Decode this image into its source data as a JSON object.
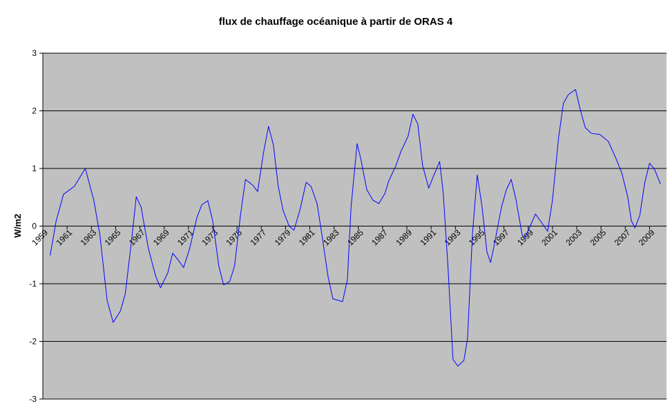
{
  "chart_data": {
    "type": "line",
    "title": "flux de chauffage océanique à partir de ORAS 4",
    "y_label": "W/m2",
    "color": "#0000ff",
    "background": "#c0c0c0",
    "grid": true,
    "xlim": [
      1959,
      2010.4
    ],
    "ylim": [
      -3,
      3
    ],
    "yticks": [
      -3,
      -2,
      -1,
      0,
      1,
      2,
      3
    ],
    "xticks": [
      1959,
      1961,
      1963,
      1965,
      1967,
      1969,
      1971,
      1973,
      1975,
      1977,
      1979,
      1981,
      1983,
      1985,
      1987,
      1989,
      1991,
      1993,
      1995,
      1997,
      1999,
      2001,
      2003,
      2005,
      2007,
      2009
    ],
    "x": [
      1959.6,
      1960.1,
      1960.7,
      1961.6,
      1962.5,
      1963.2,
      1963.7,
      1964.3,
      1964.8,
      1965.4,
      1965.8,
      1966.3,
      1966.7,
      1967.1,
      1967.7,
      1968.3,
      1968.7,
      1969.3,
      1969.7,
      1970.2,
      1970.6,
      1971.1,
      1971.7,
      1972.1,
      1972.6,
      1973.0,
      1973.5,
      1973.9,
      1974.4,
      1974.8,
      1975.3,
      1975.7,
      1976.3,
      1976.7,
      1977.2,
      1977.6,
      1978.0,
      1978.4,
      1978.8,
      1979.3,
      1979.7,
      1980.2,
      1980.7,
      1981.1,
      1981.6,
      1982.0,
      1982.5,
      1982.9,
      1983.7,
      1984.1,
      1984.4,
      1984.9,
      1985.2,
      1985.7,
      1986.2,
      1986.7,
      1987.2,
      1987.5,
      1988.1,
      1988.5,
      1989.1,
      1989.5,
      1989.9,
      1990.3,
      1990.8,
      1991.2,
      1991.7,
      1992.0,
      1992.4,
      1992.8,
      1993.2,
      1993.7,
      1994.0,
      1994.4,
      1994.8,
      1995.2,
      1995.6,
      1995.9,
      1996.2,
      1996.8,
      1997.2,
      1997.6,
      1998.0,
      1998.5,
      1998.7,
      1999.1,
      1999.6,
      2000.0,
      2000.6,
      2001.0,
      2001.5,
      2001.9,
      2002.3,
      2002.9,
      2003.3,
      2003.7,
      2004.2,
      2004.9,
      2005.6,
      2006.2,
      2006.7,
      2007.2,
      2007.5,
      2007.8,
      2008.2,
      2008.6,
      2009.0,
      2009.4,
      2009.9
    ],
    "values": [
      -0.51,
      0.09,
      0.55,
      0.69,
      1.0,
      0.45,
      -0.15,
      -1.29,
      -1.67,
      -1.47,
      -1.17,
      -0.27,
      0.51,
      0.33,
      -0.39,
      -0.87,
      -1.07,
      -0.81,
      -0.47,
      -0.6,
      -0.72,
      -0.39,
      0.15,
      0.37,
      0.44,
      0.09,
      -0.69,
      -1.02,
      -0.96,
      -0.69,
      0.21,
      0.81,
      0.71,
      0.6,
      1.29,
      1.73,
      1.41,
      0.69,
      0.27,
      0.0,
      -0.07,
      0.29,
      0.76,
      0.69,
      0.39,
      -0.15,
      -0.87,
      -1.26,
      -1.31,
      -0.93,
      0.33,
      1.43,
      1.17,
      0.63,
      0.45,
      0.39,
      0.57,
      0.78,
      1.05,
      1.29,
      1.56,
      1.94,
      1.77,
      1.05,
      0.66,
      0.87,
      1.12,
      0.57,
      -0.75,
      -2.31,
      -2.43,
      -2.33,
      -1.95,
      -0.15,
      0.89,
      0.33,
      -0.45,
      -0.63,
      -0.33,
      0.33,
      0.63,
      0.81,
      0.45,
      -0.15,
      -0.21,
      -0.03,
      0.21,
      0.09,
      -0.09,
      0.45,
      1.53,
      2.13,
      2.28,
      2.37,
      2.01,
      1.71,
      1.61,
      1.59,
      1.47,
      1.19,
      0.93,
      0.51,
      0.09,
      -0.03,
      0.19,
      0.75,
      1.09,
      0.99,
      0.73
    ]
  }
}
